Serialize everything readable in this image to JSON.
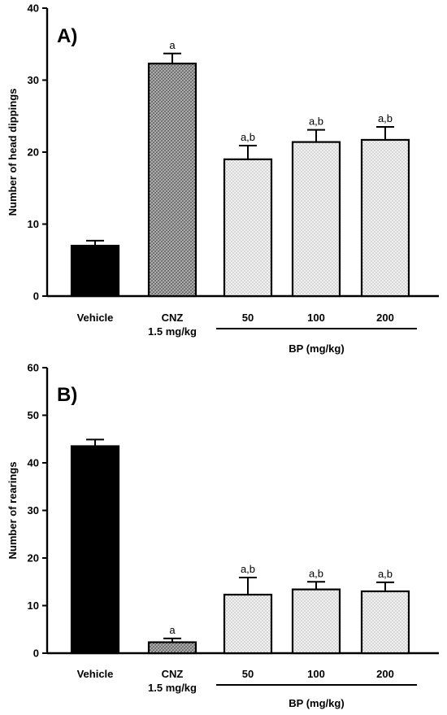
{
  "chart_data": [
    {
      "type": "bar",
      "panel_label": "A)",
      "ylabel": "Number of head dippings",
      "ylim": [
        0,
        40
      ],
      "yticks": [
        0,
        10,
        20,
        30,
        40
      ],
      "categories": [
        "Vehicle",
        "CNZ\n1.5 mg/kg",
        "50",
        "100",
        "200"
      ],
      "group_label": "BP (mg/kg)",
      "values": [
        7.0,
        32.3,
        19.0,
        21.4,
        21.7
      ],
      "errors": [
        0.7,
        1.4,
        1.9,
        1.7,
        1.8
      ],
      "annotations": [
        "",
        "a",
        "a,b",
        "a,b",
        "a,b"
      ],
      "fills": [
        "solid-black",
        "crosshatch-gray",
        "dotted",
        "dotted",
        "dotted"
      ]
    },
    {
      "type": "bar",
      "panel_label": "B)",
      "ylabel": "Number of rearings",
      "ylim": [
        0,
        60
      ],
      "yticks": [
        0,
        10,
        20,
        30,
        40,
        50,
        60
      ],
      "categories": [
        "Vehicle",
        "CNZ\n1.5 mg/kg",
        "50",
        "100",
        "200"
      ],
      "group_label": "BP (mg/kg)",
      "values": [
        43.5,
        2.3,
        12.3,
        13.4,
        13.0
      ],
      "errors": [
        1.4,
        0.8,
        3.6,
        1.6,
        1.9
      ],
      "annotations": [
        "",
        "a",
        "a,b",
        "a,b",
        "a,b"
      ],
      "fills": [
        "solid-black",
        "crosshatch-gray",
        "dotted",
        "dotted",
        "dotted"
      ]
    }
  ]
}
